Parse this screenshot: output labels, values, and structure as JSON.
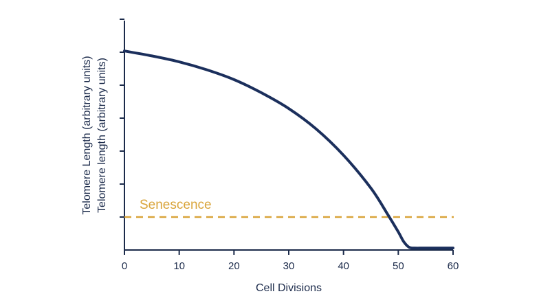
{
  "chart_data": {
    "type": "line",
    "title": "",
    "xlabel": "Cell Divisions",
    "ylabel_lines": [
      "Telomere Length (arbitrary units)",
      "Telomere length (arbitrary units)"
    ],
    "xlim": [
      0,
      60
    ],
    "ylim": [
      0,
      7
    ],
    "x_ticks": [
      "0",
      "10",
      "20",
      "30",
      "40",
      "50",
      "60"
    ],
    "x_tick_values": [
      0,
      10,
      20,
      30,
      40,
      50,
      60
    ],
    "y_tick_values": [
      1,
      2,
      3,
      4,
      5,
      6,
      7
    ],
    "grid": false,
    "series": [
      {
        "color": "#1b2f5c",
        "x": [
          0,
          5,
          10,
          15,
          20,
          25,
          30,
          35,
          40,
          45,
          48,
          50,
          51,
          52,
          53,
          55,
          60
        ],
        "y": [
          6.05,
          5.9,
          5.72,
          5.48,
          5.18,
          4.78,
          4.3,
          3.68,
          2.88,
          1.88,
          1.1,
          0.55,
          0.25,
          0.08,
          0.06,
          0.06,
          0.06
        ]
      }
    ],
    "annotations": [
      {
        "text": "Senescence",
        "y": 0.6,
        "style": "dashed",
        "color": "#d9a43a"
      }
    ]
  }
}
